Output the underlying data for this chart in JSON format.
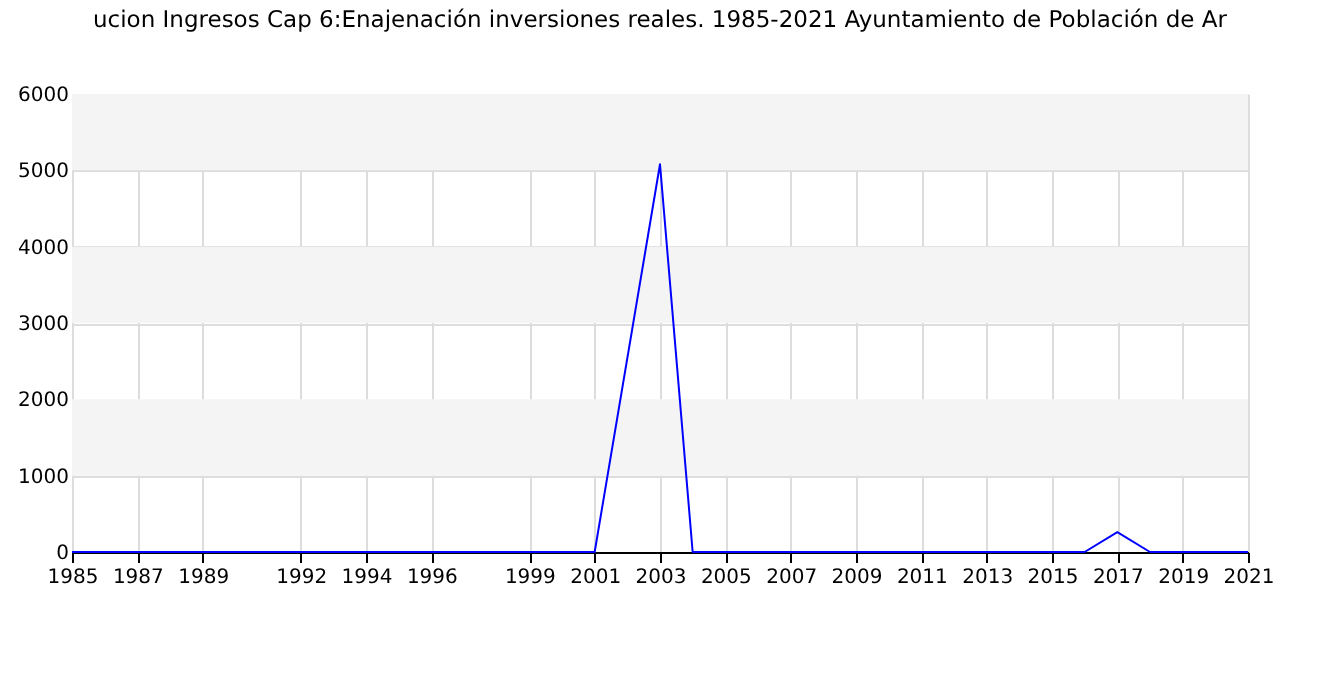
{
  "chart_data": {
    "type": "line",
    "title": "ucion Ingresos Cap 6:Enajenación inversiones reales. 1985-2021 Ayuntamiento de Población de Ar",
    "x": [
      1985,
      2001,
      2003,
      2004,
      2016,
      2017,
      2018,
      2021
    ],
    "series": [
      {
        "color": "#0000ff",
        "values": [
          0,
          0,
          5080,
          0,
          0,
          260,
          0,
          0
        ]
      }
    ],
    "xlim": [
      1985,
      2021
    ],
    "xticks": [
      1985,
      1987,
      1989,
      1992,
      1994,
      1996,
      1999,
      2001,
      2003,
      2005,
      2007,
      2009,
      2011,
      2013,
      2015,
      2017,
      2019,
      2021
    ],
    "ylim": [
      0,
      6000
    ],
    "yticks": [
      0,
      1000,
      2000,
      3000,
      4000,
      5000,
      6000
    ],
    "bands": [
      {
        "axis": "y",
        "from": 1000,
        "to": 2000,
        "color": "#f4f4f4"
      },
      {
        "axis": "y",
        "from": 3000,
        "to": 4000,
        "color": "#f4f4f4"
      },
      {
        "axis": "y",
        "from": 5000,
        "to": 6000,
        "color": "#f4f4f4"
      }
    ],
    "grid": true,
    "marker": "none",
    "line_style": "solid"
  }
}
